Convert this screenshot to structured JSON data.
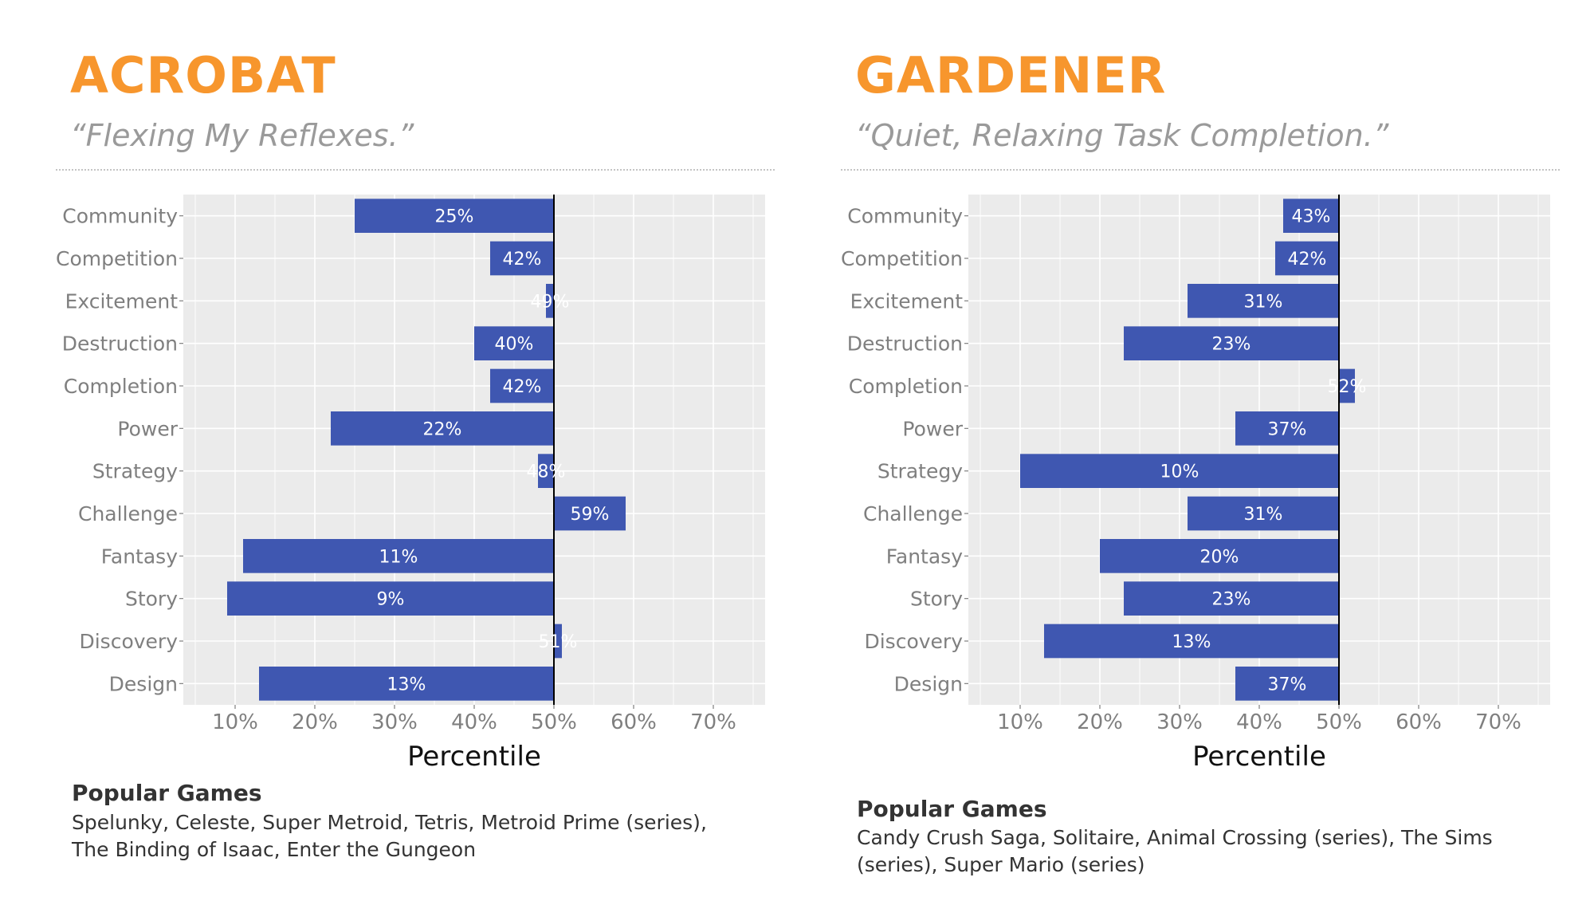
{
  "colors": {
    "accent": "#f7962d",
    "bar": "#3f57b1",
    "panel_bg": "#ebebeb",
    "grid": "#ffffff",
    "axis_text": "#7f7f7f",
    "body_text": "#333333"
  },
  "panels": [
    {
      "title": "ACROBAT",
      "tagline": "“Flexing My Reflexes.”",
      "games_heading": "Popular Games",
      "games": "Spelunky, Celeste, Super Metroid, Tetris, Metroid Prime (series), The Binding of Isaac, Enter the Gungeon"
    },
    {
      "title": "GARDENER",
      "tagline": "“Quiet, Relaxing Task Completion.”",
      "games_heading": "Popular Games",
      "games": "Candy Crush Saga, Solitaire, Animal Crossing (series), The Sims (series), Super Mario (series)"
    }
  ],
  "chart_data": [
    {
      "type": "bar",
      "orientation": "horizontal",
      "title": "ACROBAT",
      "baseline": 50,
      "categories": [
        "Community",
        "Competition",
        "Excitement",
        "Destruction",
        "Completion",
        "Power",
        "Strategy",
        "Challenge",
        "Fantasy",
        "Story",
        "Discovery",
        "Design"
      ],
      "values": [
        25,
        42,
        49,
        40,
        42,
        22,
        48,
        59,
        11,
        9,
        51,
        13
      ],
      "labels": [
        "25%",
        "42%",
        "49%",
        "40%",
        "42%",
        "22%",
        "48%",
        "59%",
        "11%",
        "9%",
        "51%",
        "13%"
      ],
      "xlabel": "Percentile",
      "ylabel": "",
      "xlim": [
        3.5,
        76.5
      ],
      "xticks": [
        10,
        20,
        30,
        40,
        50,
        60,
        70
      ],
      "xtick_labels": [
        "10%",
        "20%",
        "30%",
        "40%",
        "50%",
        "60%",
        "70%"
      ],
      "grid": true
    },
    {
      "type": "bar",
      "orientation": "horizontal",
      "title": "GARDENER",
      "baseline": 50,
      "categories": [
        "Community",
        "Competition",
        "Excitement",
        "Destruction",
        "Completion",
        "Power",
        "Strategy",
        "Challenge",
        "Fantasy",
        "Story",
        "Discovery",
        "Design"
      ],
      "values": [
        43,
        42,
        31,
        23,
        52,
        37,
        10,
        31,
        20,
        23,
        13,
        37
      ],
      "labels": [
        "43%",
        "42%",
        "31%",
        "23%",
        "52%",
        "37%",
        "10%",
        "31%",
        "20%",
        "23%",
        "13%",
        "37%"
      ],
      "xlabel": "Percentile",
      "ylabel": "",
      "xlim": [
        3.5,
        76.5
      ],
      "xticks": [
        10,
        20,
        30,
        40,
        50,
        60,
        70
      ],
      "xtick_labels": [
        "10%",
        "20%",
        "30%",
        "40%",
        "50%",
        "60%",
        "70%"
      ],
      "grid": true
    }
  ]
}
